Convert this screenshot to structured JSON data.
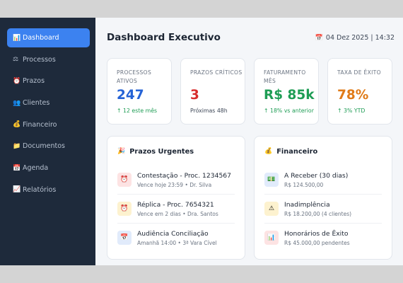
{
  "sidebar": {
    "items": [
      {
        "label": "Dashboard",
        "icon": "bar-chart-icon",
        "glyph": "📊",
        "active": true
      },
      {
        "label": "Processos",
        "icon": "scales-icon",
        "glyph": "⚖",
        "active": false
      },
      {
        "label": "Prazos",
        "icon": "alarm-clock-icon",
        "glyph": "⏰",
        "active": false
      },
      {
        "label": "Clientes",
        "icon": "users-icon",
        "glyph": "👥",
        "active": false
      },
      {
        "label": "Financeiro",
        "icon": "money-bag-icon",
        "glyph": "💰",
        "active": false
      },
      {
        "label": "Documentos",
        "icon": "folder-icon",
        "glyph": "📁",
        "active": false
      },
      {
        "label": "Agenda",
        "icon": "calendar-icon",
        "glyph": "📅",
        "active": false
      },
      {
        "label": "Relatórios",
        "icon": "line-chart-icon",
        "glyph": "📈",
        "active": false
      }
    ]
  },
  "header": {
    "title": "Dashboard Executivo",
    "datetime": "04 Dez 2025 | 14:32",
    "datetime_icon": "calendar-icon"
  },
  "stats": [
    {
      "label": "PROCESSOS ATIVOS",
      "value": "247",
      "sub": "↑ 12 este mês",
      "value_color": "#2563d6",
      "sub_color": "#1f9d55"
    },
    {
      "label": "PRAZOS CRÍTICOS",
      "value": "3",
      "sub": "Próximas 48h",
      "value_color": "#d72c2c",
      "sub_color": "#3c4656"
    },
    {
      "label": "FATURAMENTO MÊS",
      "value": "R$ 85k",
      "sub": "↑ 18% vs anterior",
      "value_color": "#1f9d55",
      "sub_color": "#1f9d55"
    },
    {
      "label": "TAXA DE ÊXITO",
      "value": "78%",
      "sub": "↑ 3% YTD",
      "value_color": "#e07b18",
      "sub_color": "#1f9d55"
    }
  ],
  "prazos": {
    "title": "Prazos Urgentes",
    "icon": "party-popper-icon",
    "items": [
      {
        "title": "Contestação - Proc. 1234567",
        "sub": "Vence hoje 23:59 • Dr. Silva",
        "icon": "alarm-clock-icon",
        "glyph": "⏰",
        "bg": "#fde3e3"
      },
      {
        "title": "Réplica - Proc. 7654321",
        "sub": "Vence em 2 dias • Dra. Santos",
        "icon": "alarm-clock-icon",
        "glyph": "⏰",
        "bg": "#fdf2cf"
      },
      {
        "title": "Audiência Conciliação",
        "sub": "Amanhã 14:00 • 3ª Vara Cível",
        "icon": "calendar-icon",
        "glyph": "📅",
        "bg": "#e1ebfb"
      }
    ]
  },
  "financeiro": {
    "title": "Financeiro",
    "icon": "money-bag-icon",
    "items": [
      {
        "title": "A Receber (30 dias)",
        "sub": "R$ 124.500,00",
        "icon": "banknote-icon",
        "glyph": "💵",
        "bg": "#e1ebfb"
      },
      {
        "title": "Inadimplência",
        "sub": "R$ 18.200,00 (4 clientes)",
        "icon": "warning-icon",
        "glyph": "⚠",
        "bg": "#fdf2cf"
      },
      {
        "title": "Honorários de Êxito",
        "sub": "R$ 45.000,00 pendentes",
        "icon": "bar-chart-icon",
        "glyph": "📊",
        "bg": "#fde3e3"
      }
    ]
  },
  "colors": {
    "sidebar_bg": "#1e2a3b",
    "accent": "#3c82f0",
    "page_bg": "#f4f6f9"
  }
}
